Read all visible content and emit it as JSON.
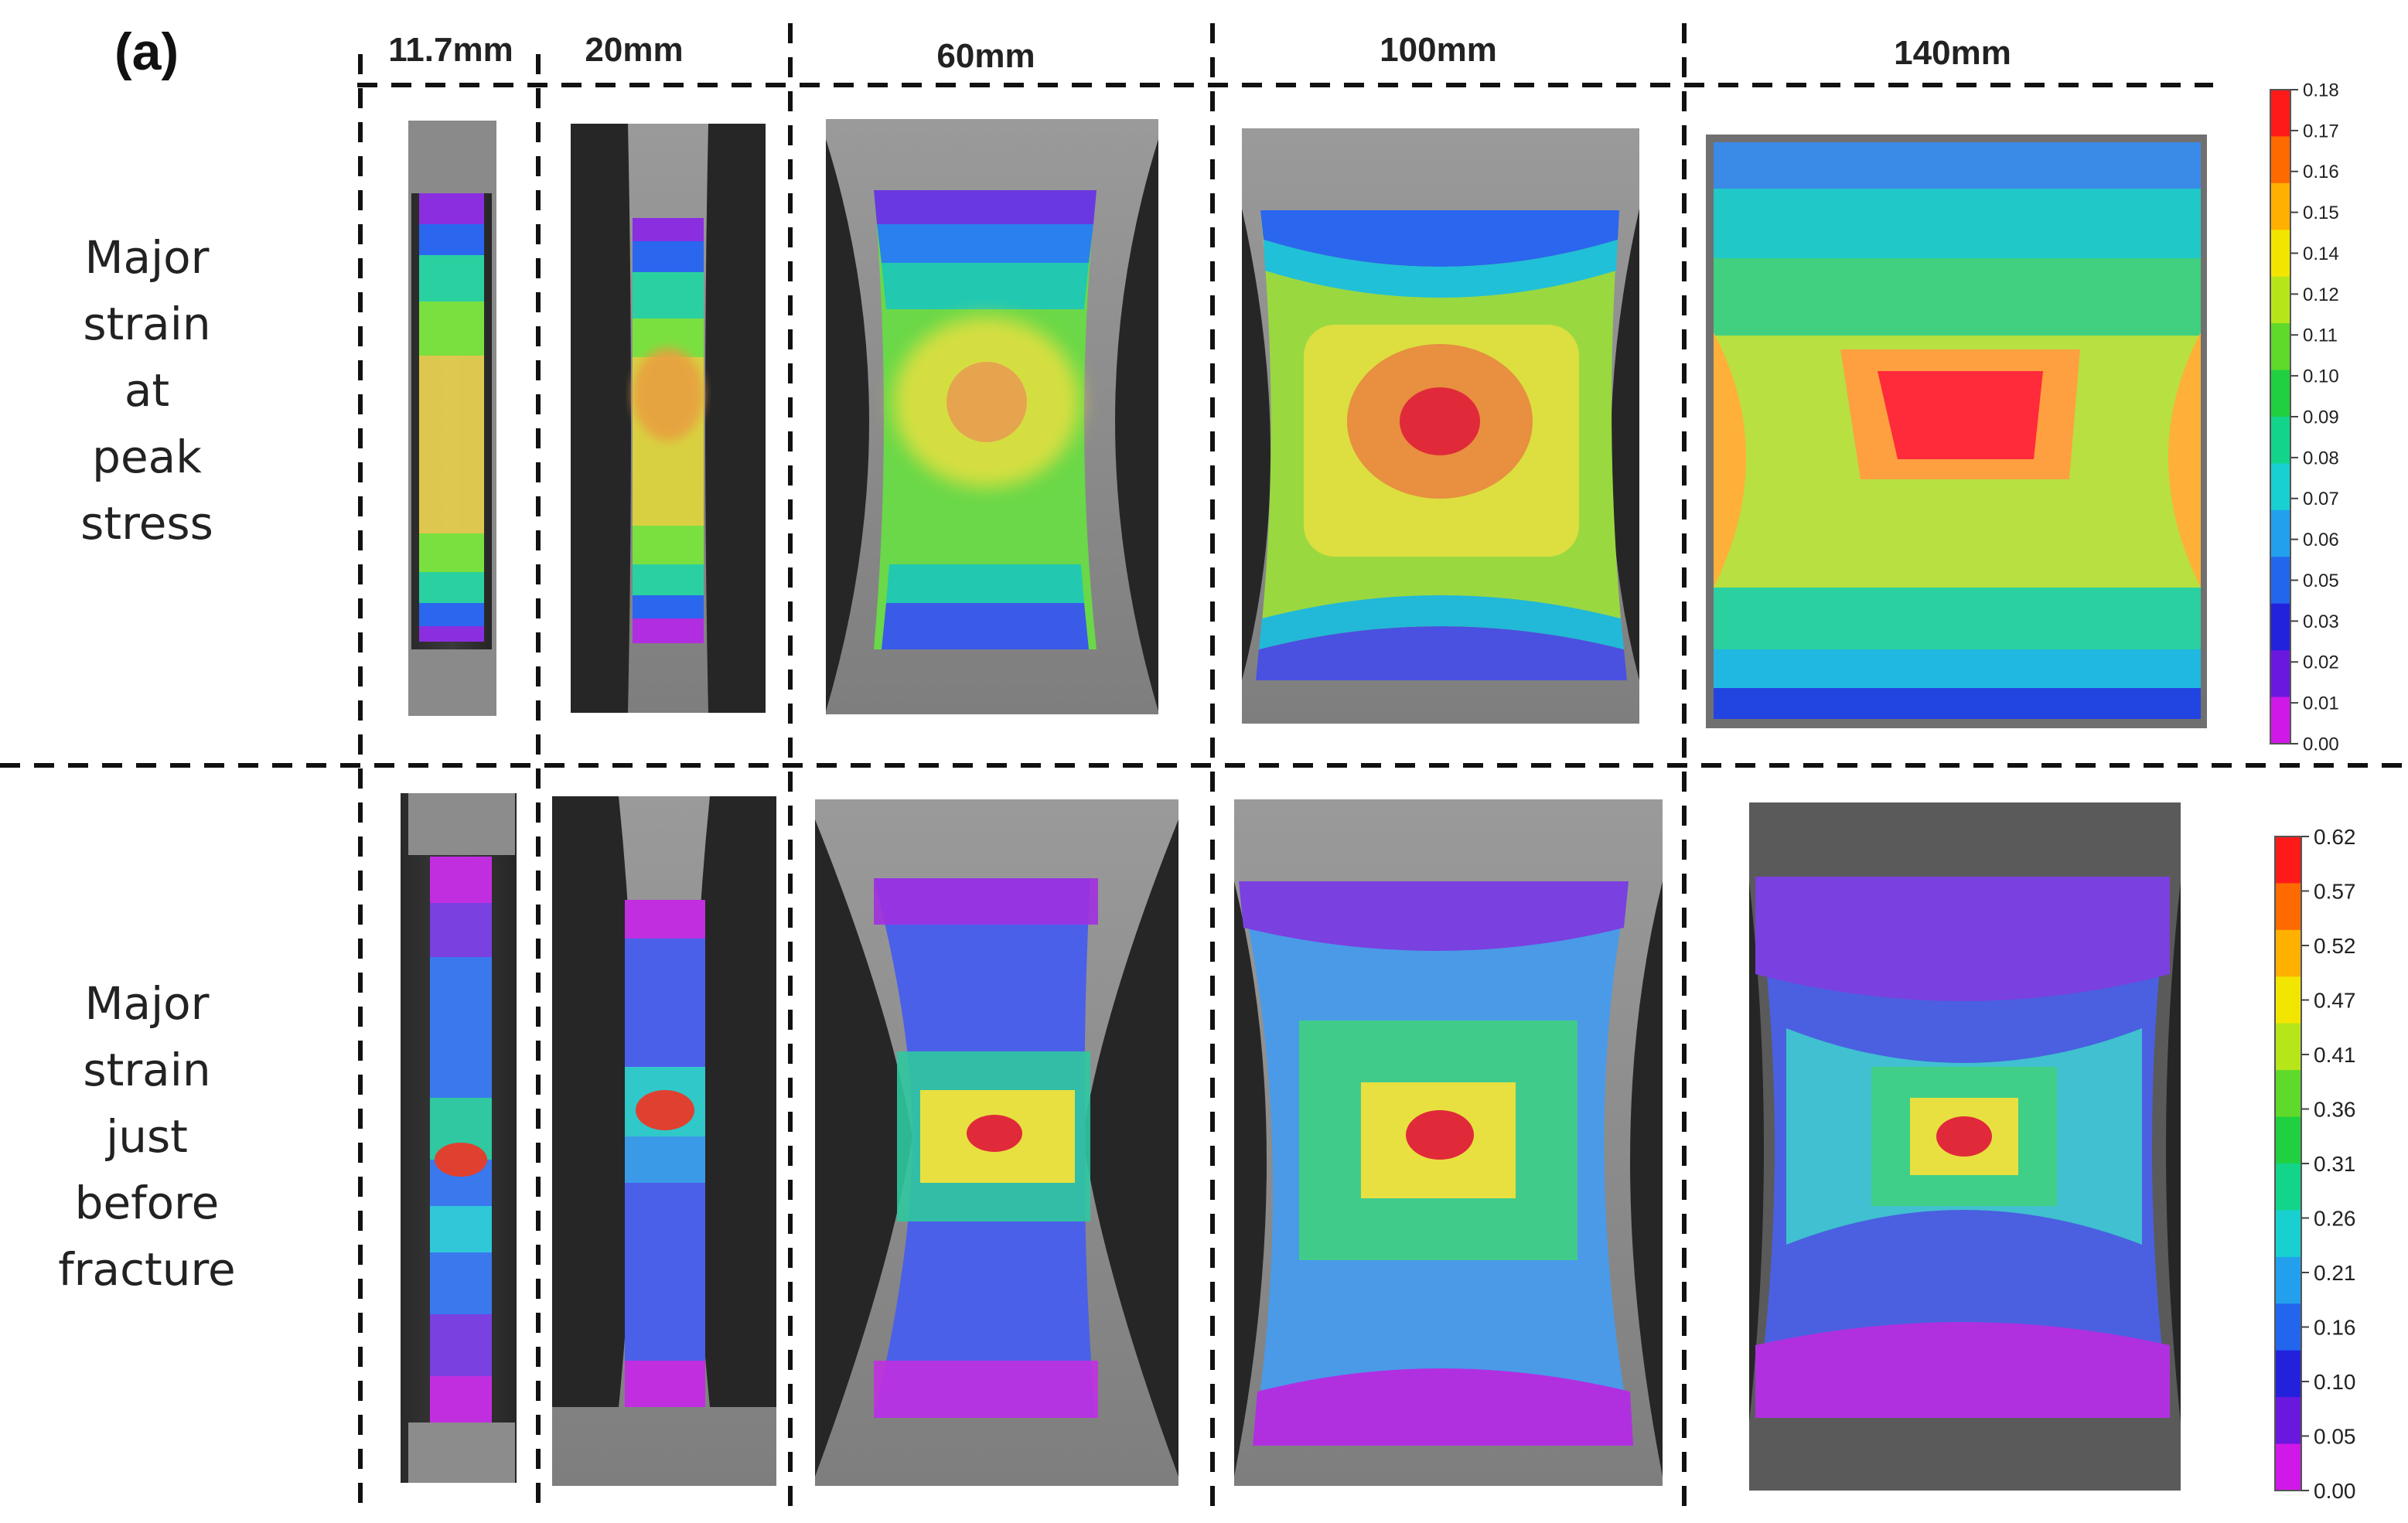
{
  "panel_label": "(a)",
  "columns": [
    {
      "label": "11.7mm"
    },
    {
      "label": "20mm"
    },
    {
      "label": "60mm"
    },
    {
      "label": "100mm"
    },
    {
      "label": "140mm"
    }
  ],
  "rows": [
    {
      "label_lines": [
        "Major",
        "strain",
        "at",
        "peak",
        "stress"
      ]
    },
    {
      "label_lines": [
        "Major",
        "strain",
        "just",
        "before",
        "fracture"
      ]
    }
  ],
  "colorbars": [
    {
      "name": "peak-stress-scale",
      "ticks": [
        "0.18",
        "0.17",
        "0.16",
        "0.15",
        "0.14",
        "0.12",
        "0.11",
        "0.10",
        "0.09",
        "0.08",
        "0.07",
        "0.06",
        "0.05",
        "0.03",
        "0.02",
        "0.01",
        "0.00"
      ]
    },
    {
      "name": "fracture-scale",
      "ticks": [
        "0.62",
        "0.57",
        "0.52",
        "0.47",
        "0.41",
        "0.36",
        "0.31",
        "0.26",
        "0.21",
        "0.16",
        "0.10",
        "0.05",
        "0.00"
      ]
    }
  ],
  "colors": {
    "scale": [
      "#ff1a1a",
      "#ff6a00",
      "#ffb000",
      "#f2e600",
      "#b6e61a",
      "#5fd92a",
      "#20d040",
      "#12d58a",
      "#18d0d0",
      "#22a0ee",
      "#2266ee",
      "#2222dd",
      "#6a18dd",
      "#d018e8"
    ]
  }
}
